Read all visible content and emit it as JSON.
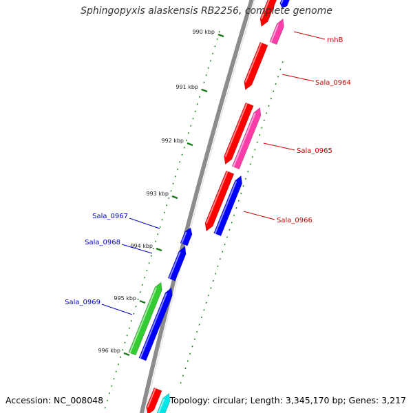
{
  "title": "Sphingopyxis alaskensis RB2256, complete genome",
  "accession": "Accession: NC_008048",
  "summary": "Topology: circular; Length: 3,345,170 bp; Genes: 3,217",
  "colors": {
    "backbone": "#8c8c8c",
    "tick": "#1a7a1a",
    "forward_label": "#cc0000",
    "reverse_label": "#0000cc",
    "red": "#ff0000",
    "pink": "#ff3ca8",
    "blue": "#0000ff",
    "green": "#33cc33",
    "cyan": "#00e5e5"
  },
  "ticks": [
    {
      "label": "990 kbp"
    },
    {
      "label": "991 kbp"
    },
    {
      "label": "992 kbp"
    },
    {
      "label": "993 kbp"
    },
    {
      "label": "994 kbp"
    },
    {
      "label": "995 kbp"
    },
    {
      "label": "996 kbp"
    }
  ],
  "gene_labels": [
    {
      "name": "rnhB",
      "strand": "forward"
    },
    {
      "name": "Sala_0964",
      "strand": "forward"
    },
    {
      "name": "Sala_0965",
      "strand": "forward"
    },
    {
      "name": "Sala_0966",
      "strand": "forward"
    },
    {
      "name": "Sala_0967",
      "strand": "reverse"
    },
    {
      "name": "Sala_0968",
      "strand": "reverse"
    },
    {
      "name": "Sala_0969",
      "strand": "reverse"
    }
  ]
}
